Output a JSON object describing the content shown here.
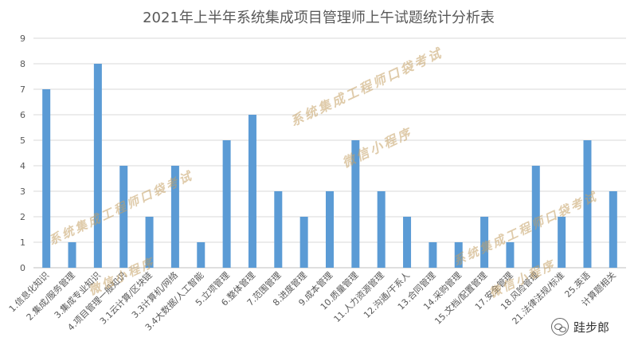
{
  "chart_data": {
    "type": "bar",
    "title": "2021年上半年系统集成项目管理师上午试题统计分析表",
    "categories": [
      "1.信息化知识",
      "2.集成/服务管理",
      "3.集成专业知识",
      "4.项目管理一般知识",
      "3.1云计算/区块链",
      "3.3计算机/网络",
      "3.4大数据/人工智能",
      "5.立项管理",
      "6.整体管理",
      "7.范围管理",
      "8.进度管理",
      "9.成本管理",
      "10.质量管理",
      "11.人力资源管理",
      "12.沟通/干系人",
      "13.合同管理",
      "14.采购管理",
      "15.文档/配置管理",
      "17.安全管理",
      "18.风险管理",
      "21.法律法规/标准",
      "25.英语",
      "计算题相关"
    ],
    "values": [
      7,
      1,
      8,
      4,
      2,
      4,
      1,
      5,
      6,
      3,
      2,
      3,
      5,
      3,
      2,
      1,
      1,
      2,
      1,
      4,
      2,
      5,
      3
    ],
    "ylim": [
      0,
      9
    ],
    "yticks": [
      0,
      1,
      2,
      3,
      4,
      5,
      6,
      7,
      8,
      9
    ],
    "grid": true,
    "legend": "none",
    "bar_color": "#5b9bd5",
    "grid_color": "#d9d9d9",
    "axis_text_color": "#595959"
  },
  "watermarks": [
    {
      "text": "系统集成工程师口袋考试"
    },
    {
      "text": "微信小程序"
    },
    {
      "text": "系统集成工程师口袋考试"
    },
    {
      "text": "微信小程序"
    },
    {
      "text": "系统集成工程师口袋考试"
    },
    {
      "text": "微信小程序"
    }
  ],
  "footer": {
    "icon": "wechat-icon",
    "brand": "跬步郎"
  }
}
